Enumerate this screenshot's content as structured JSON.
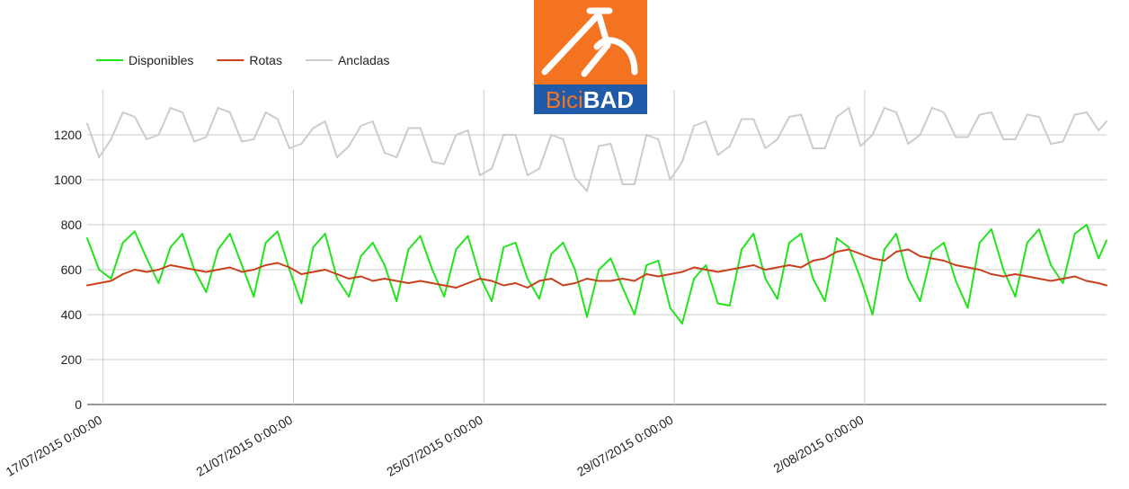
{
  "logo": {
    "text_light": "Bici",
    "text_bold": "BAD",
    "icon": "bicycle-icon",
    "colors": {
      "orange": "#F47321",
      "blue": "#1F5BA8",
      "white": "#FFFFFF"
    }
  },
  "chart_data": {
    "type": "line",
    "title": "",
    "xlabel": "",
    "ylabel": "",
    "ylim": [
      0,
      1400
    ],
    "yticks": [
      0,
      200,
      400,
      600,
      800,
      1000,
      1200
    ],
    "xlim": [
      "2015-07-16T16:00",
      "2015-08-07T02:00"
    ],
    "xtick_labels": [
      {
        "x": "2015-07-17T00:00",
        "label": "17/07/2015 0:00:00"
      },
      {
        "x": "2015-07-21T00:00",
        "label": "21/07/2015 0:00:00"
      },
      {
        "x": "2015-07-25T00:00",
        "label": "25/07/2015 0:00:00"
      },
      {
        "x": "2015-07-29T00:00",
        "label": "29/07/2015 0:00:00"
      },
      {
        "x": "2015-08-02T00:00",
        "label": "2/08/2015 0:00:00"
      }
    ],
    "grid": true,
    "legend_position": "top-left",
    "x": [
      "2015-07-16T16:00",
      "2015-07-16T22:00",
      "2015-07-17T04:00",
      "2015-07-17T10:00",
      "2015-07-17T16:00",
      "2015-07-17T22:00",
      "2015-07-18T04:00",
      "2015-07-18T10:00",
      "2015-07-18T16:00",
      "2015-07-18T22:00",
      "2015-07-19T04:00",
      "2015-07-19T10:00",
      "2015-07-19T16:00",
      "2015-07-19T22:00",
      "2015-07-20T04:00",
      "2015-07-20T10:00",
      "2015-07-20T16:00",
      "2015-07-20T22:00",
      "2015-07-21T04:00",
      "2015-07-21T10:00",
      "2015-07-21T16:00",
      "2015-07-21T22:00",
      "2015-07-22T04:00",
      "2015-07-22T10:00",
      "2015-07-22T16:00",
      "2015-07-22T22:00",
      "2015-07-23T04:00",
      "2015-07-23T10:00",
      "2015-07-23T16:00",
      "2015-07-23T22:00",
      "2015-07-24T04:00",
      "2015-07-24T10:00",
      "2015-07-24T16:00",
      "2015-07-24T22:00",
      "2015-07-25T04:00",
      "2015-07-25T10:00",
      "2015-07-25T16:00",
      "2015-07-25T22:00",
      "2015-07-26T04:00",
      "2015-07-26T10:00",
      "2015-07-26T16:00",
      "2015-07-26T22:00",
      "2015-07-27T04:00",
      "2015-07-27T10:00",
      "2015-07-27T16:00",
      "2015-07-27T22:00",
      "2015-07-28T04:00",
      "2015-07-28T10:00",
      "2015-07-28T16:00",
      "2015-07-28T22:00",
      "2015-07-29T04:00",
      "2015-07-29T10:00",
      "2015-07-29T16:00",
      "2015-07-29T22:00",
      "2015-07-30T04:00",
      "2015-07-30T10:00",
      "2015-07-30T16:00",
      "2015-07-30T22:00",
      "2015-07-31T04:00",
      "2015-07-31T10:00",
      "2015-07-31T16:00",
      "2015-07-31T22:00",
      "2015-08-01T04:00",
      "2015-08-01T10:00",
      "2015-08-01T16:00",
      "2015-08-01T22:00",
      "2015-08-02T04:00",
      "2015-08-02T10:00",
      "2015-08-02T16:00",
      "2015-08-02T22:00",
      "2015-08-03T04:00",
      "2015-08-03T10:00",
      "2015-08-03T16:00",
      "2015-08-03T22:00",
      "2015-08-04T04:00",
      "2015-08-04T10:00",
      "2015-08-04T16:00",
      "2015-08-04T22:00",
      "2015-08-05T04:00",
      "2015-08-05T10:00",
      "2015-08-05T16:00",
      "2015-08-05T22:00",
      "2015-08-06T04:00",
      "2015-08-06T10:00",
      "2015-08-06T16:00",
      "2015-08-06T22:00",
      "2015-08-07T02:00"
    ],
    "series": [
      {
        "name": "Disponibles",
        "color": "#22E41C",
        "values": [
          740,
          600,
          560,
          720,
          770,
          650,
          540,
          700,
          760,
          600,
          500,
          690,
          760,
          620,
          480,
          720,
          770,
          600,
          450,
          700,
          760,
          560,
          480,
          660,
          720,
          620,
          460,
          690,
          750,
          600,
          480,
          690,
          750,
          570,
          460,
          700,
          720,
          560,
          470,
          670,
          720,
          600,
          390,
          600,
          650,
          520,
          400,
          620,
          640,
          430,
          360,
          560,
          620,
          450,
          440,
          690,
          760,
          560,
          470,
          720,
          760,
          560,
          460,
          740,
          700,
          560,
          400,
          690,
          760,
          560,
          460,
          680,
          720,
          550,
          430,
          720,
          780,
          600,
          480,
          720,
          780,
          620,
          540,
          760,
          800,
          650,
          730
        ]
      },
      {
        "name": "Rotas",
        "color": "#C8401C",
        "values": [
          530,
          540,
          550,
          580,
          600,
          590,
          600,
          620,
          610,
          600,
          590,
          600,
          610,
          590,
          600,
          620,
          630,
          610,
          580,
          590,
          600,
          580,
          560,
          570,
          550,
          560,
          550,
          540,
          550,
          540,
          530,
          520,
          540,
          560,
          550,
          530,
          540,
          520,
          550,
          560,
          530,
          540,
          560,
          550,
          550,
          560,
          550,
          580,
          570,
          580,
          590,
          610,
          600,
          590,
          600,
          610,
          620,
          600,
          610,
          620,
          610,
          640,
          650,
          680,
          690,
          670,
          650,
          640,
          680,
          690,
          660,
          650,
          640,
          620,
          610,
          600,
          580,
          570,
          580,
          570,
          560,
          550,
          560,
          570,
          550,
          540,
          530
        ]
      },
      {
        "name": "Ancladas",
        "color": "#CCCCCC",
        "values": [
          1250,
          1100,
          1180,
          1300,
          1280,
          1180,
          1200,
          1320,
          1300,
          1170,
          1190,
          1320,
          1300,
          1170,
          1180,
          1300,
          1270,
          1140,
          1160,
          1230,
          1260,
          1100,
          1150,
          1240,
          1260,
          1120,
          1100,
          1230,
          1230,
          1080,
          1070,
          1200,
          1220,
          1020,
          1050,
          1200,
          1200,
          1020,
          1050,
          1200,
          1180,
          1010,
          950,
          1150,
          1160,
          980,
          980,
          1200,
          1180,
          1000,
          1080,
          1240,
          1260,
          1110,
          1150,
          1270,
          1270,
          1140,
          1180,
          1280,
          1290,
          1140,
          1140,
          1280,
          1320,
          1150,
          1200,
          1320,
          1300,
          1160,
          1200,
          1320,
          1300,
          1190,
          1190,
          1290,
          1300,
          1180,
          1180,
          1290,
          1280,
          1160,
          1170,
          1290,
          1300,
          1220,
          1260
        ]
      }
    ]
  }
}
